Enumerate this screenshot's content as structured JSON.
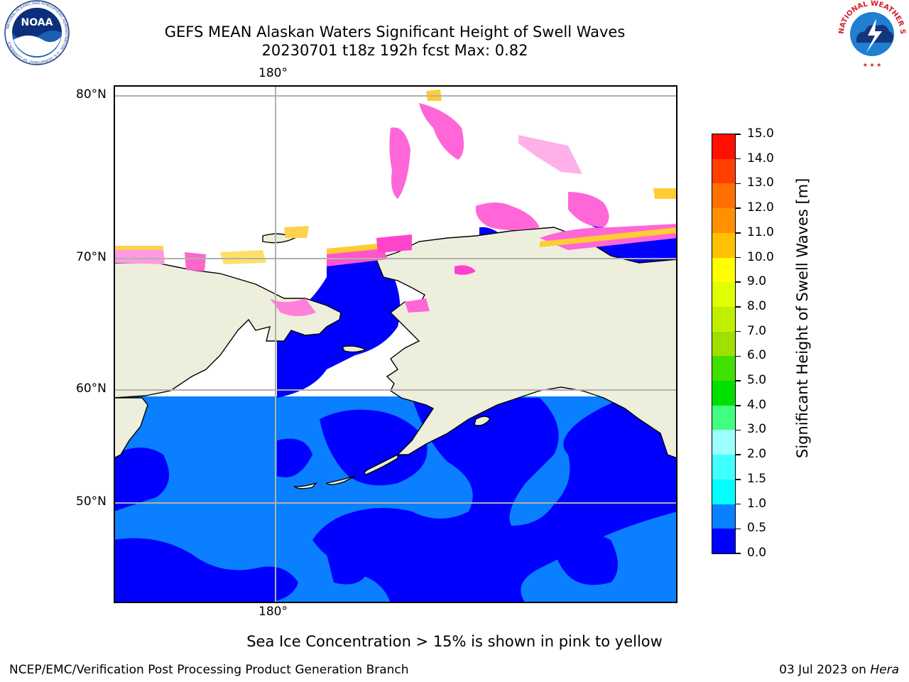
{
  "header": {
    "title": "GEFS MEAN Alaskan Waters Significant Height of Swell Waves",
    "subtitle": "20230701 t18z 192h fcst   Max: 0.82"
  },
  "logos": {
    "noaa": {
      "text": "NOAA",
      "ring_text": "NATIONAL OCEANIC AND ATMOSPHERIC ADMINISTRATION · U.S. DEPARTMENT OF COMMERCE"
    },
    "nws": {
      "ring_text": "NATIONAL WEATHER SERVICE"
    }
  },
  "map": {
    "lat_labels": [
      "80°N",
      "70°N",
      "60°N",
      "50°N"
    ],
    "lon_label_top": "180°",
    "lon_label_bottom": "180°",
    "colors": {
      "land": "#eeeedc",
      "ocean_low": "#0000ff",
      "ocean_mid": "#0a7fff",
      "grid": "#b0b0b0"
    }
  },
  "colorbar": {
    "label": "Significant Height of Swell Waves [m]",
    "ticks": [
      "15.0",
      "14.0",
      "13.0",
      "12.0",
      "11.0",
      "10.0",
      "9.0",
      "8.0",
      "7.0",
      "6.0",
      "5.0",
      "4.0",
      "3.0",
      "2.0",
      "1.5",
      "1.0",
      "0.5",
      "0.0"
    ],
    "colors_bottom_to_top": [
      "#0000ff",
      "#0a7fff",
      "#00ffff",
      "#40ffff",
      "#9effff",
      "#40ff80",
      "#00e000",
      "#40e000",
      "#a0e000",
      "#c0f000",
      "#e0ff00",
      "#ffff00",
      "#ffc000",
      "#ff9000",
      "#ff7000",
      "#ff4000",
      "#ff1000"
    ]
  },
  "notes": {
    "ice": "Sea Ice Concentration > 15% is shown in pink to yellow"
  },
  "footer": {
    "left": "NCEP/EMC/Verification Post Processing Product Generation Branch",
    "right_date": "03 Jul 2023 on ",
    "right_host": "Hera"
  }
}
